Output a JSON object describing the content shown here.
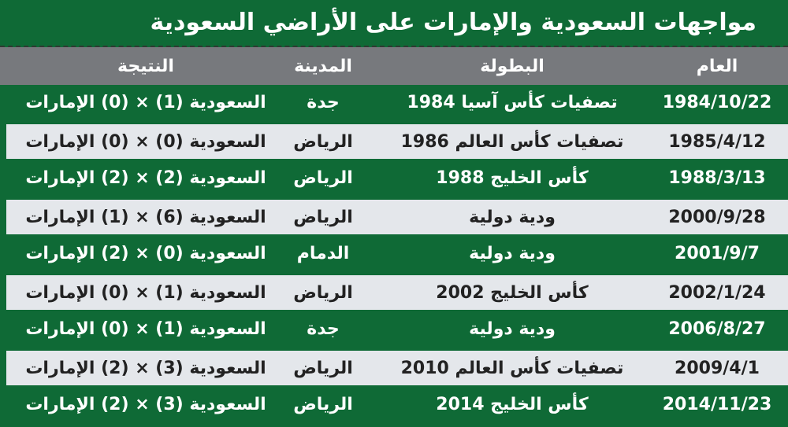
{
  "title": "مواجهات السعودية والإمارات على الأراضي السعودية",
  "colors": {
    "background": "#0f6a36",
    "header": "#77797d",
    "alt_row": "#e4e7eb"
  },
  "columns": [
    "العام",
    "البطولة",
    "المدينة",
    "النتيجة"
  ],
  "rows": [
    {
      "date": "1984/10/22",
      "competition": "تصفيات كأس آسيا 1984",
      "city": "جدة",
      "result": "السعودية (1) × (0) الإمارات"
    },
    {
      "date": "1985/4/12",
      "competition": "تصفيات كأس العالم 1986",
      "city": "الرياض",
      "result": "السعودية (0) × (0) الإمارات"
    },
    {
      "date": "1988/3/13",
      "competition": "كأس الخليج 1988",
      "city": "الرياض",
      "result": "السعودية (2) × (2) الإمارات"
    },
    {
      "date": "2000/9/28",
      "competition": "ودية دولية",
      "city": "الرياض",
      "result": "السعودية (6) × (1) الإمارات"
    },
    {
      "date": "2001/9/7",
      "competition": "ودية دولية",
      "city": "الدمام",
      "result": "السعودية (0) × (2) الإمارات"
    },
    {
      "date": "2002/1/24",
      "competition": "كأس الخليج 2002",
      "city": "الرياض",
      "result": "السعودية (1) × (0) الإمارات"
    },
    {
      "date": "2006/8/27",
      "competition": "ودية دولية",
      "city": "جدة",
      "result": "السعودية (1) × (0) الإمارات"
    },
    {
      "date": "2009/4/1",
      "competition": "تصفيات كأس العالم 2010",
      "city": "الرياض",
      "result": "السعودية (3) × (2) الإمارات"
    },
    {
      "date": "2014/11/23",
      "competition": "كأس الخليج 2014",
      "city": "الرياض",
      "result": "السعودية (3) × (2) الإمارات"
    }
  ]
}
